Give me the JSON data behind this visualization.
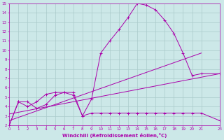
{
  "xlabel": "Windchill (Refroidissement éolien,°C)",
  "xlim": [
    0,
    23
  ],
  "ylim": [
    2,
    15
  ],
  "xticks": [
    0,
    1,
    2,
    3,
    4,
    5,
    6,
    7,
    8,
    9,
    10,
    11,
    12,
    13,
    14,
    15,
    16,
    17,
    18,
    19,
    20,
    21,
    23
  ],
  "yticks": [
    2,
    3,
    4,
    5,
    6,
    7,
    8,
    9,
    10,
    11,
    12,
    13,
    14,
    15
  ],
  "background_color": "#cce8e8",
  "grid_color": "#aacaca",
  "line_color": "#aa00aa",
  "line1_x": [
    0,
    1,
    2,
    3,
    4,
    5,
    6,
    7,
    8,
    9,
    10,
    11,
    12,
    13,
    14,
    15,
    16,
    17,
    18,
    19,
    20,
    21,
    23
  ],
  "line1_y": [
    2.0,
    4.5,
    4.0,
    4.5,
    5.3,
    5.5,
    5.5,
    5.5,
    3.0,
    4.8,
    9.7,
    11.0,
    12.2,
    13.5,
    15.0,
    14.8,
    14.3,
    13.2,
    11.8,
    9.7,
    7.3,
    7.5,
    7.5
  ],
  "line2_x": [
    0,
    1,
    2,
    3,
    4,
    5,
    6,
    7,
    8,
    9,
    10,
    11,
    12,
    13,
    14,
    15,
    16,
    17,
    18,
    19,
    20,
    21,
    23
  ],
  "line2_y": [
    2.0,
    4.5,
    4.5,
    3.8,
    4.2,
    5.2,
    5.5,
    5.2,
    3.0,
    3.3,
    3.3,
    3.3,
    3.3,
    3.3,
    3.3,
    3.3,
    3.3,
    3.3,
    3.3,
    3.3,
    3.3,
    3.3,
    2.5
  ],
  "line3_x": [
    0,
    21
  ],
  "line3_y": [
    2.5,
    9.7
  ],
  "line4_x": [
    0,
    23
  ],
  "line4_y": [
    3.2,
    7.5
  ],
  "marker": "+"
}
